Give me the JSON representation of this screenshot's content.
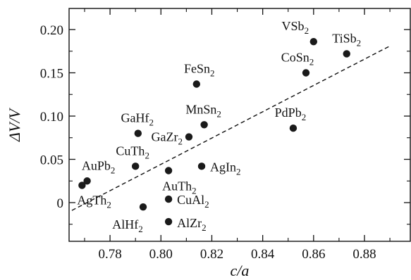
{
  "chart_data": {
    "type": "scatter",
    "xlabel": "c/a",
    "ylabel": "ΔV/V",
    "xlim": [
      0.765,
      0.895
    ],
    "ylim": [
      -0.035,
      0.225
    ],
    "xticks": [
      0.78,
      0.8,
      0.82,
      0.84,
      0.86,
      0.88
    ],
    "xtick_labels": [
      "0.78",
      "0.80",
      "0.82",
      "0.84",
      "0.86",
      "0.88"
    ],
    "yticks": [
      0,
      0.05,
      0.1,
      0.15,
      0.2
    ],
    "ytick_labels": [
      "0",
      "0.05",
      "0.10",
      "0.15",
      "0.20"
    ],
    "grid": false,
    "points": [
      {
        "label": "VSb2",
        "base": "VSb",
        "sub": "2",
        "x": 0.86,
        "y": 0.186
      },
      {
        "label": "TiSb2",
        "base": "TiSb",
        "sub": "2",
        "x": 0.873,
        "y": 0.172
      },
      {
        "label": "CoSn2",
        "base": "CoSn",
        "sub": "2",
        "x": 0.857,
        "y": 0.15
      },
      {
        "label": "FeSn2",
        "base": "FeSn",
        "sub": "2",
        "x": 0.814,
        "y": 0.137
      },
      {
        "label": "MnSn2",
        "base": "MnSn",
        "sub": "2",
        "x": 0.817,
        "y": 0.09
      },
      {
        "label": "PdPb2",
        "base": "PdPb",
        "sub": "2",
        "x": 0.852,
        "y": 0.086
      },
      {
        "label": "GaHf2",
        "base": "GaHf",
        "sub": "2",
        "x": 0.791,
        "y": 0.08
      },
      {
        "label": "GaZr2",
        "base": "GaZr",
        "sub": "2",
        "x": 0.811,
        "y": 0.076
      },
      {
        "label": "CuTh2",
        "base": "CuTh",
        "sub": "2",
        "x": 0.79,
        "y": 0.042
      },
      {
        "label": "AgIn2",
        "base": "AgIn",
        "sub": "2",
        "x": 0.816,
        "y": 0.042
      },
      {
        "label": "AuTh2",
        "base": "AuTh",
        "sub": "2",
        "x": 0.803,
        "y": 0.037
      },
      {
        "label": "AuPb2",
        "base": "AuPb",
        "sub": "2",
        "x": 0.771,
        "y": 0.025
      },
      {
        "label": "AgTh2",
        "base": "AgTh",
        "sub": "2",
        "x": 0.769,
        "y": 0.02
      },
      {
        "label": "CuAl2",
        "base": "CuAl",
        "sub": "2",
        "x": 0.803,
        "y": 0.004
      },
      {
        "label": "AlHf2",
        "base": "AlHf",
        "sub": "2",
        "x": 0.793,
        "y": -0.005
      },
      {
        "label": "AlZr2",
        "base": "AlZr",
        "sub": "2",
        "x": 0.803,
        "y": -0.022
      }
    ],
    "fit_line": {
      "style": "dashed",
      "x": [
        0.765,
        0.89
      ],
      "y": [
        -0.009,
        0.181
      ]
    }
  },
  "colors": {
    "marker": "#1a1a1a",
    "axis": "#111111"
  }
}
